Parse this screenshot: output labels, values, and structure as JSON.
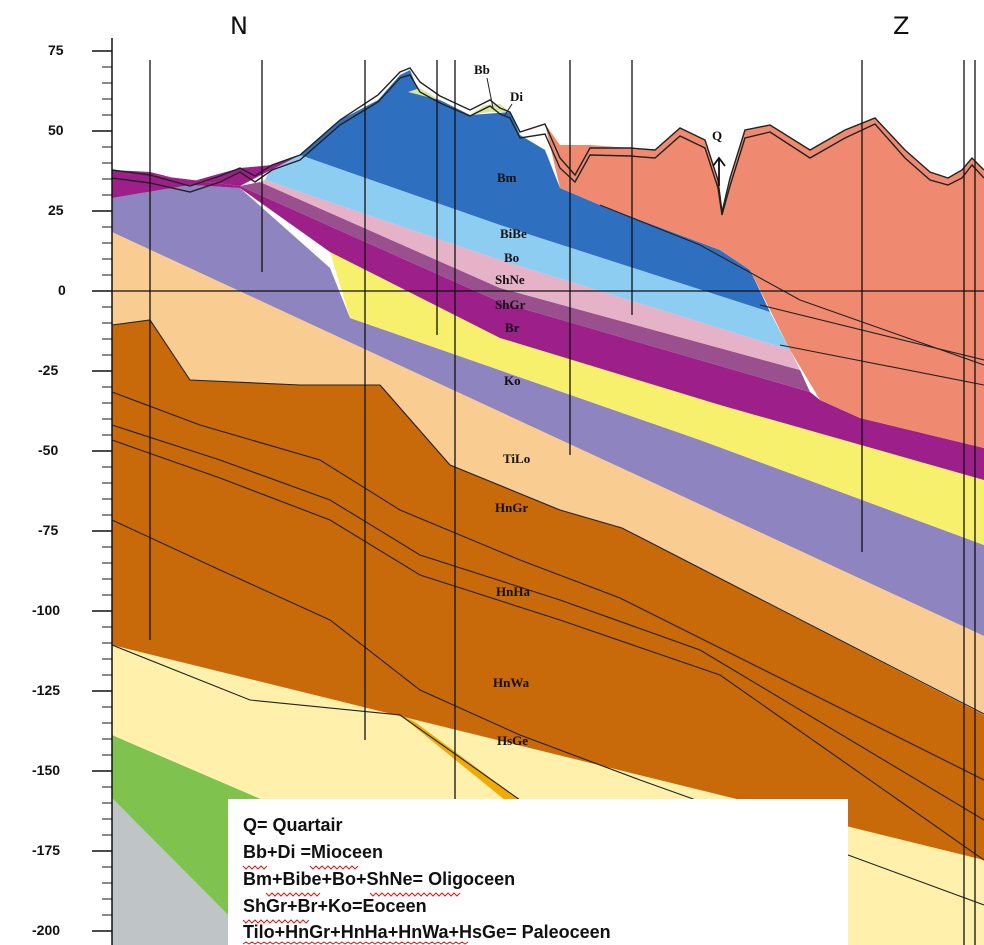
{
  "directions": {
    "north": "N",
    "south": "Z"
  },
  "depth_axis": {
    "ticks": [
      "75",
      "50",
      "25",
      "0",
      "-25",
      "-50",
      "-75",
      "-100",
      "-125",
      "-150",
      "-175",
      "-200"
    ]
  },
  "units": {
    "bb": "Bb",
    "di": "Di",
    "q": "Q",
    "bm": "Bm",
    "bibe": "BiBe",
    "bo": "Bo",
    "shne": "ShNe",
    "shgr": "ShGr",
    "br": "Br",
    "ko": "Ko",
    "tilo": "TiLo",
    "hngr": "HnGr",
    "hnha": "HnHa",
    "hnwa": "HnWa",
    "hsge": "HsGe"
  },
  "legend": [
    "Q= Quartair",
    "Bb+Di =Mioceen",
    "Bm+Bibe+Bo+ShNe= Oligoceen",
    "ShGr+Br+Ko=Eoceen",
    "Tilo+HnGr+HnHa+HnWa+HsGe= Paleoceen"
  ],
  "colors": {
    "quaternary": "#ef8a70",
    "miocene": "#d9e6a0",
    "bm": "#2e6fbf",
    "bibe": "#8ecdf2",
    "bo": "#e6b2c8",
    "shne": "#9a4f8f",
    "shgr": "#9c1f8a",
    "br": "#f7f06d",
    "ko": "#8d84c0",
    "tilo": "#f9cc92",
    "hn": "#c8690a",
    "hsge": "#fff1ac",
    "green": "#7fc24e",
    "grey": "#bfc4c7",
    "lignite": "#f2a900"
  }
}
